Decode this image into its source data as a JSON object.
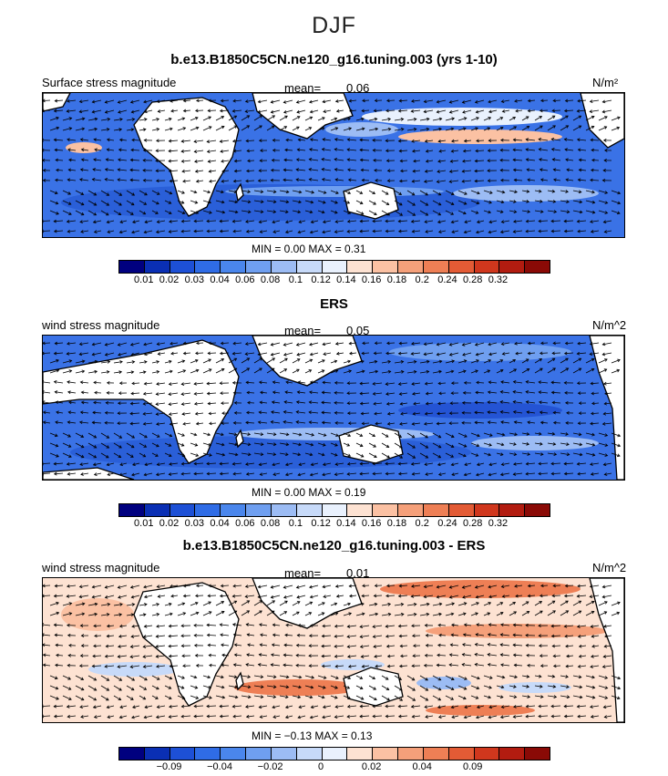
{
  "figure": {
    "title": "DJF"
  },
  "palette": [
    "#00007f",
    "#0a2fb4",
    "#1d50d6",
    "#2f6ce6",
    "#4a86ec",
    "#6f9ff0",
    "#9cbcf4",
    "#c7daf9",
    "#e9f1fd",
    "#fde2d2",
    "#fbc1a3",
    "#f5a07a",
    "#ee7f55",
    "#e35b35",
    "#d0371d",
    "#b21c10",
    "#8a0a06"
  ],
  "panels": [
    {
      "title": "b.e13.B1850C5CN.ne120_g16.tuning.003 (yrs 1-10)",
      "left_label": "Surface stress magnitude",
      "mean_label": "mean=",
      "mean_value": "0.06",
      "units": "N/m²",
      "min_max": "MIN =    0.00  MAX =    0.31",
      "tick_labels": [
        "0.01",
        "0.02",
        "0.03",
        "0.04",
        "0.06",
        "0.08",
        "0.1",
        "0.12",
        "0.14",
        "0.16",
        "0.18",
        "0.2",
        "0.24",
        "0.28",
        "0.32"
      ]
    },
    {
      "title": "ERS",
      "left_label": "wind stress magnitude",
      "mean_label": "mean=",
      "mean_value": "0.05",
      "units": "N/m^2",
      "min_max": "MIN =    0.00  MAX =    0.19",
      "tick_labels": [
        "0.01",
        "0.02",
        "0.03",
        "0.04",
        "0.06",
        "0.08",
        "0.1",
        "0.12",
        "0.14",
        "0.16",
        "0.18",
        "0.2",
        "0.24",
        "0.28",
        "0.32"
      ]
    },
    {
      "title": "b.e13.B1850C5CN.ne120_g16.tuning.003 - ERS",
      "left_label": "wind stress magnitude",
      "mean_label": "mean=",
      "mean_value": "0.01",
      "units": "N/m^2",
      "min_max": "MIN =  −0.13  MAX =    0.13",
      "tick_labels": [
        "",
        "−0.09",
        "",
        "−0.04",
        "",
        "−0.02",
        "",
        "0",
        "",
        "0.02",
        "",
        "0.04",
        "",
        "0.09",
        ""
      ]
    }
  ]
}
